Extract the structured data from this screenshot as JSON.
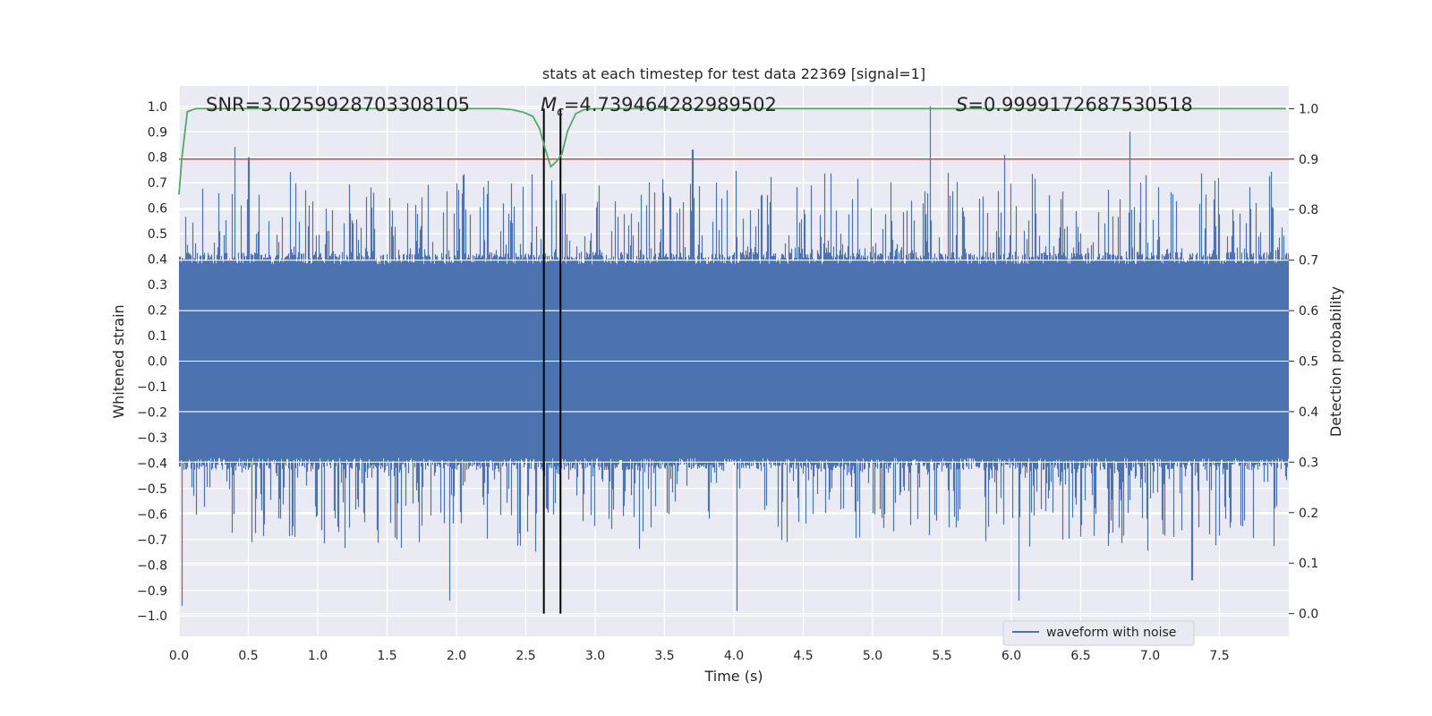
{
  "chart_data": {
    "type": "line",
    "title": "stats at each timestep for test data 22369 [signal=1]",
    "xlabel": "Time (s)",
    "ylabel": "Whitened strain",
    "y2label": "Detection probability",
    "xlim": [
      0.0,
      8.0
    ],
    "ylim": [
      -1.08,
      1.08
    ],
    "y2lim": [
      -0.045,
      1.045
    ],
    "xticks": [
      0.0,
      0.5,
      1.0,
      1.5,
      2.0,
      2.5,
      3.0,
      3.5,
      4.0,
      4.5,
      5.0,
      5.5,
      6.0,
      6.5,
      7.0,
      7.5
    ],
    "xtick_labels": [
      "0.0",
      "0.5",
      "1.0",
      "1.5",
      "2.0",
      "2.5",
      "3.0",
      "3.5",
      "4.0",
      "4.5",
      "5.0",
      "5.5",
      "6.0",
      "6.5",
      "7.0",
      "7.5"
    ],
    "yticks": [
      1.0,
      0.9,
      0.8,
      0.7,
      0.6,
      0.5,
      0.4,
      0.3,
      0.2,
      0.1,
      0.0,
      -0.1,
      -0.2,
      -0.3,
      -0.4,
      -0.5,
      -0.6,
      -0.7,
      -0.8,
      -0.9,
      -1.0
    ],
    "ytick_labels": [
      "1.0",
      "0.9",
      "0.8",
      "0.7",
      "0.6",
      "0.5",
      "0.4",
      "0.3",
      "0.2",
      "0.1",
      "0.0",
      "−0.1",
      "−0.2",
      "−0.3",
      "−0.4",
      "−0.5",
      "−0.6",
      "−0.7",
      "−0.8",
      "−0.9",
      "−1.0"
    ],
    "y2ticks": [
      1.0,
      0.9,
      0.8,
      0.7,
      0.6,
      0.5,
      0.4,
      0.3,
      0.2,
      0.1,
      0.0
    ],
    "y2tick_labels": [
      "1.0",
      "0.9",
      "0.8",
      "0.7",
      "0.6",
      "0.5",
      "0.4",
      "0.3",
      "0.2",
      "0.1",
      "0.0"
    ],
    "grid": true,
    "legend": {
      "location": "lower-right",
      "entries": [
        "waveform with noise"
      ]
    },
    "annotations": {
      "snr": "SNR=3.0259928703308105",
      "mc_symbol": "M",
      "mc_sub": "c",
      "mc_value": "=4.739464282989502",
      "s_symbol": "S",
      "s_value": "=0.9999172687530518"
    },
    "threshold": {
      "axis": "right",
      "value": 0.9,
      "color": "#c44e52"
    },
    "vlines": {
      "axis": "right",
      "x": [
        2.63,
        2.75
      ],
      "ymin": 0.0,
      "ymax": 1.0,
      "color": "#000000"
    },
    "series": [
      {
        "name": "waveform with noise",
        "axis": "left",
        "color": "#4c72b0",
        "sample_rate": 2048,
        "duration": 8.0,
        "envelope": {
          "upper": 0.4,
          "lower": -0.4,
          "spike_rate": 0.35
        },
        "peaks": [
          {
            "x": 0.02,
            "y": -0.96
          },
          {
            "x": 0.4,
            "y": 0.84
          },
          {
            "x": 0.5,
            "y": 0.8
          },
          {
            "x": 1.95,
            "y": -0.94
          },
          {
            "x": 3.7,
            "y": 0.83
          },
          {
            "x": 4.02,
            "y": -0.98
          },
          {
            "x": 5.41,
            "y": 1.0
          },
          {
            "x": 5.95,
            "y": 0.81
          },
          {
            "x": 6.05,
            "y": -0.94
          },
          {
            "x": 6.85,
            "y": 0.9
          },
          {
            "x": 7.3,
            "y": -0.86
          }
        ]
      },
      {
        "name": "detection probability",
        "axis": "right",
        "color": "#55a868",
        "x": [
          0.0,
          0.02,
          0.06,
          0.12,
          0.3,
          1.0,
          2.0,
          2.3,
          2.4,
          2.48,
          2.55,
          2.6,
          2.64,
          2.68,
          2.72,
          2.76,
          2.8,
          2.86,
          2.92,
          3.0,
          3.5,
          5.0,
          7.98
        ],
        "y": [
          0.83,
          0.9,
          0.994,
          1.0,
          1.0,
          1.0,
          1.0,
          1.0,
          0.998,
          0.993,
          0.985,
          0.96,
          0.92,
          0.885,
          0.895,
          0.91,
          0.955,
          0.99,
          0.998,
          1.0,
          1.0,
          1.0,
          1.0
        ]
      }
    ]
  }
}
